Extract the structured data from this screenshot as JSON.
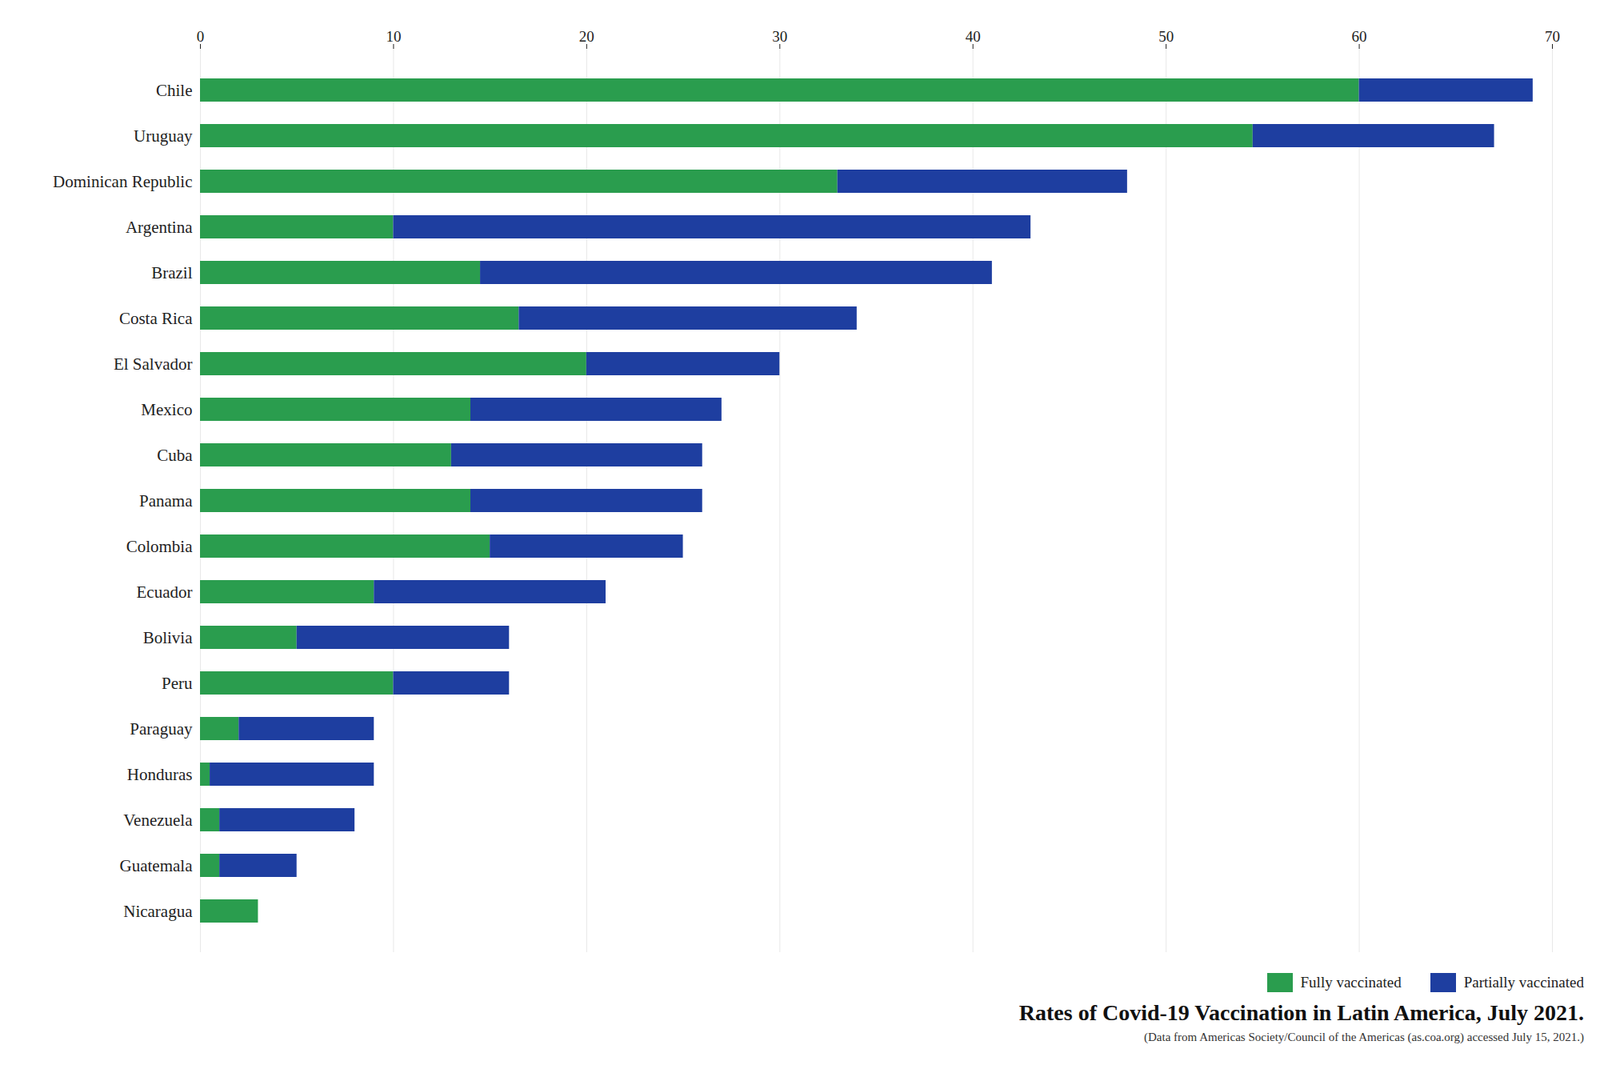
{
  "chart_data": {
    "type": "bar",
    "orientation": "horizontal",
    "stacked": true,
    "title": "Rates of  Covid-19 Vaccination in Latin America, July 2021.",
    "subtitle": "(Data from Americas Society/Council of the Americas (as.coa.org) accessed July 15, 2021.)",
    "categories": [
      "Chile",
      "Uruguay",
      "Dominican Republic",
      "Argentina",
      "Brazil",
      "Costa Rica",
      "El Salvador",
      "Mexico",
      "Cuba",
      "Panama",
      "Colombia",
      "Ecuador",
      "Bolivia",
      "Peru",
      "Paraguay",
      "Honduras",
      "Venezuela",
      "Guatemala",
      "Nicaragua"
    ],
    "series": [
      {
        "name": "Fully vaccinated",
        "color": "#2a9d4e",
        "values": [
          60.0,
          54.5,
          33.0,
          10.0,
          14.5,
          16.5,
          20.0,
          14.0,
          13.0,
          14.0,
          15.0,
          9.0,
          5.0,
          10.0,
          2.0,
          0.5,
          1.0,
          1.0,
          3.0
        ]
      },
      {
        "name": "Partially vaccinated",
        "color": "#1e3ea0",
        "values": [
          9.0,
          12.5,
          15.0,
          33.0,
          26.5,
          17.5,
          10.0,
          13.0,
          13.0,
          12.0,
          10.0,
          12.0,
          11.0,
          6.0,
          7.0,
          8.5,
          7.0,
          4.0,
          0.0
        ]
      }
    ],
    "xlim": [
      0,
      70
    ],
    "xticks": [
      0,
      10,
      20,
      30,
      40,
      50,
      60,
      70
    ],
    "grid": true,
    "legend": "lower right"
  }
}
